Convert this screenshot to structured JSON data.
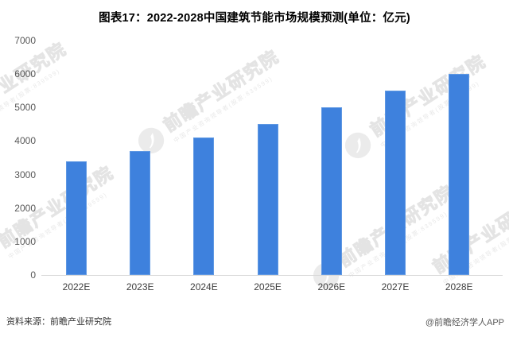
{
  "title": "图表17：2022-2028中国建筑节能市场规模预测(单位：亿元)",
  "chart_data": {
    "type": "bar",
    "title": "图表17：2022-2028中国建筑节能市场规模预测(单位：亿元)",
    "unit": "亿元",
    "categories": [
      "2022E",
      "2023E",
      "2024E",
      "2025E",
      "2026E",
      "2027E",
      "2028E"
    ],
    "values": [
      3400,
      3700,
      4100,
      4500,
      5000,
      5500,
      6000
    ],
    "xlabel": "",
    "ylabel": "",
    "ylim": [
      0,
      7000
    ],
    "ytick_step": 1000,
    "grid": false,
    "legend_position": "none",
    "bar_color": "#3E81DD"
  },
  "watermark": {
    "text": "前瞻产业研究院",
    "subtext": "中国产业咨询领导者(股票:839599)"
  },
  "footer": {
    "source": "资料来源：前瞻产业研究院",
    "credit": "@前瞻经济学人APP"
  }
}
